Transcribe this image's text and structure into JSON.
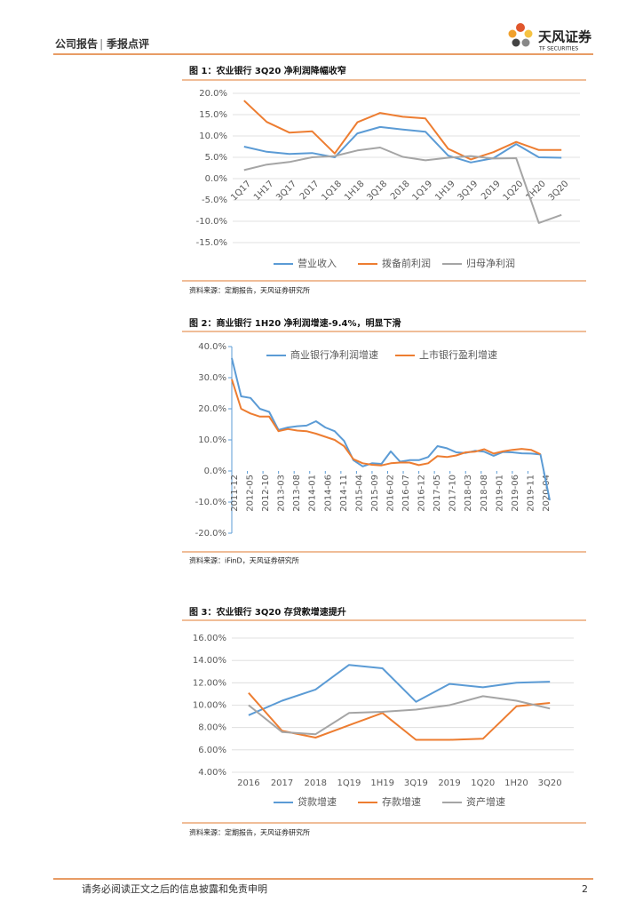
{
  "header": {
    "report_type": "公司报告",
    "report_kind": "季报点评",
    "logo_name": "天风证券",
    "logo_en": "TF SECURITIES"
  },
  "footer": {
    "disclaimer": "请务必阅读正文之后的信息披露和免责申明",
    "page": "2"
  },
  "chart_data": [
    {
      "type": "line",
      "title": "图 1：农业银行 3Q20 净利润降幅收窄",
      "source": "资料来源：定期报告，天风证券研究所",
      "categories": [
        "1Q17",
        "1H17",
        "3Q17",
        "2017",
        "1Q18",
        "1H18",
        "3Q18",
        "2018",
        "1Q19",
        "1H19",
        "3Q19",
        "2019",
        "1Q20",
        "1H20",
        "3Q20"
      ],
      "series": [
        {
          "name": "营业收入",
          "color": "#5b9bd5",
          "values": [
            7.5,
            6.3,
            5.8,
            6.0,
            5.0,
            10.6,
            12.1,
            11.5,
            11.0,
            5.4,
            3.8,
            4.8,
            8.1,
            5.0,
            4.9
          ]
        },
        {
          "name": "拨备前利润",
          "color": "#ed7d31",
          "values": [
            18.3,
            13.3,
            10.8,
            11.1,
            5.9,
            13.2,
            15.4,
            14.5,
            14.1,
            7.0,
            4.5,
            6.2,
            8.6,
            6.7,
            6.7
          ]
        },
        {
          "name": "归母净利润",
          "color": "#a5a5a5",
          "values": [
            2.0,
            3.3,
            3.9,
            5.0,
            5.3,
            6.6,
            7.3,
            5.1,
            4.3,
            4.9,
            5.3,
            4.7,
            4.8,
            -10.4,
            -8.5
          ]
        }
      ],
      "ylim": [
        -15,
        20
      ],
      "yticks": [
        {
          "value": -15,
          "label": "-15.0%"
        },
        {
          "value": -10,
          "label": "-10.0%"
        },
        {
          "value": -5,
          "label": "-5.0%"
        },
        {
          "value": 0,
          "label": "0.0%"
        },
        {
          "value": 5,
          "label": "5.0%"
        },
        {
          "value": 10,
          "label": "10.0%"
        },
        {
          "value": 15,
          "label": "15.0%"
        },
        {
          "value": 20,
          "label": "20.0%"
        }
      ],
      "grid": true,
      "legend": "bottom"
    },
    {
      "type": "line",
      "title": "图 2：商业银行 1H20 净利润增速-9.4%，明显下滑",
      "source": "资料来源：iFinD，天风证券研究所",
      "x": [
        "2011-12",
        "2012-03",
        "2012-06",
        "2012-09",
        "2012-12",
        "2013-03",
        "2013-06",
        "2013-09",
        "2013-12",
        "2014-03",
        "2014-06",
        "2014-09",
        "2014-12",
        "2015-03",
        "2015-06",
        "2015-09",
        "2015-12",
        "2016-03",
        "2016-06",
        "2016-09",
        "2016-12",
        "2017-03",
        "2017-06",
        "2017-09",
        "2017-12",
        "2018-03",
        "2018-06",
        "2018-09",
        "2018-12",
        "2019-03",
        "2019-06",
        "2019-09",
        "2019-12",
        "2020-03",
        "2020-06"
      ],
      "xticks": [
        "2011-12",
        "2012-05",
        "2012-10",
        "2013-03",
        "2013-08",
        "2014-01",
        "2014-06",
        "2014-11",
        "2015-04",
        "2015-09",
        "2016-02",
        "2016-07",
        "2016-12",
        "2017-05",
        "2017-10",
        "2018-03",
        "2018-08",
        "2019-01",
        "2019-06",
        "2019-11",
        "2020-04"
      ],
      "series": [
        {
          "name": "商业银行净利润增速",
          "color": "#5b9bd5",
          "values": [
            36.3,
            24,
            23.5,
            20,
            19,
            13.2,
            14,
            14.4,
            14.6,
            16,
            14,
            12.8,
            9.7,
            3.5,
            1.5,
            2.5,
            2.3,
            6.3,
            3.0,
            3.5,
            3.5,
            4.5,
            8.0,
            7.3,
            6.0,
            5.8,
            6.5,
            6.2,
            4.9,
            6.1,
            6.0,
            5.7,
            5.6,
            5.3,
            -9.4
          ]
        },
        {
          "name": "上市银行盈利增速",
          "color": "#ed7d31",
          "values": [
            29.5,
            20,
            18.5,
            17.5,
            17.5,
            12.8,
            13.5,
            13,
            12.8,
            12,
            11,
            10,
            8,
            3.8,
            2.5,
            2,
            1.8,
            2.5,
            2.7,
            2.7,
            1.9,
            2.5,
            4.8,
            4.5,
            5.0,
            6.0,
            6.2,
            7.0,
            5.6,
            6.3,
            6.8,
            7.1,
            6.8,
            5.4,
            null
          ]
        }
      ],
      "ylim": [
        -20,
        40
      ],
      "yticks": [
        {
          "value": -20,
          "label": "-20.0%"
        },
        {
          "value": -10,
          "label": "-10.0%"
        },
        {
          "value": 0,
          "label": "0.0%"
        },
        {
          "value": 10,
          "label": "10.0%"
        },
        {
          "value": 20,
          "label": "20.0%"
        },
        {
          "value": 30,
          "label": "30.0%"
        },
        {
          "value": 40,
          "label": "40.0%"
        }
      ],
      "grid": false,
      "legend": "top"
    },
    {
      "type": "line",
      "title": "图 3：农业银行 3Q20 存贷款增速提升",
      "source": "资料来源：定期报告，天风证券研究所",
      "categories": [
        "2016",
        "2017",
        "2018",
        "1Q19",
        "1H19",
        "3Q19",
        "2019",
        "1Q20",
        "1H20",
        "3Q20"
      ],
      "series": [
        {
          "name": "贷款增速",
          "color": "#5b9bd5",
          "values": [
            9.1,
            10.4,
            11.4,
            13.6,
            13.3,
            10.3,
            11.9,
            11.6,
            12.0,
            12.1
          ]
        },
        {
          "name": "存款增速",
          "color": "#ed7d31",
          "values": [
            11.1,
            7.7,
            7.1,
            8.2,
            9.3,
            6.9,
            6.9,
            7.0,
            9.9,
            10.2
          ]
        },
        {
          "name": "资产增速",
          "color": "#a5a5a5",
          "values": [
            10.0,
            7.6,
            7.4,
            9.3,
            9.4,
            9.6,
            10.0,
            10.8,
            10.4,
            9.7
          ]
        }
      ],
      "ylim": [
        4,
        16
      ],
      "yticks": [
        {
          "value": 4,
          "label": "4.00%"
        },
        {
          "value": 6,
          "label": "6.00%"
        },
        {
          "value": 8,
          "label": "8.00%"
        },
        {
          "value": 10,
          "label": "10.00%"
        },
        {
          "value": 12,
          "label": "12.00%"
        },
        {
          "value": 14,
          "label": "14.00%"
        },
        {
          "value": 16,
          "label": "16.00%"
        }
      ],
      "grid": true,
      "legend": "bottom"
    }
  ]
}
